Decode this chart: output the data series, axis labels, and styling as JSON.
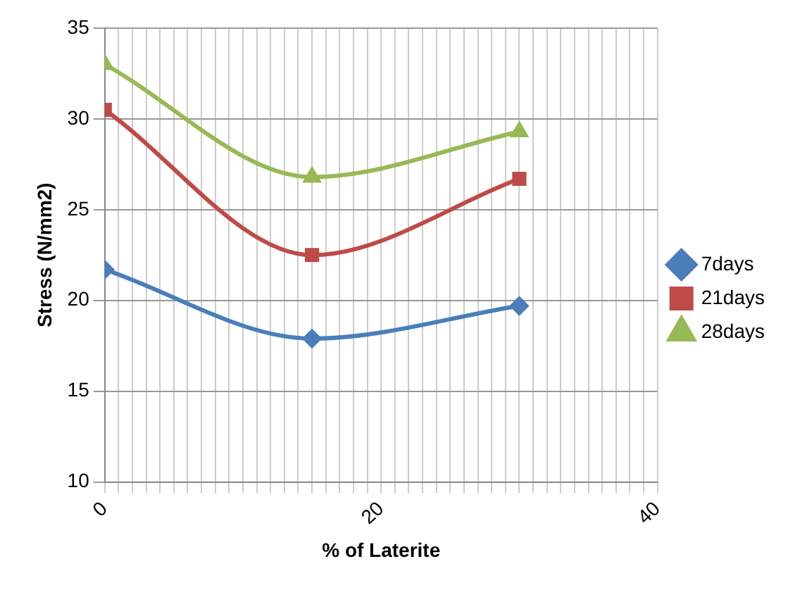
{
  "chart_data": {
    "type": "line",
    "xlabel": "% of Laterite",
    "ylabel": "Stress (N/mm2)",
    "x": [
      0,
      15,
      30
    ],
    "series": [
      {
        "name": "7days",
        "color": "#4a7ebb",
        "values": [
          21.7,
          17.9,
          19.7
        ],
        "marker": "diamond"
      },
      {
        "name": "21days",
        "color": "#be4b48",
        "values": [
          30.5,
          22.5,
          26.7
        ],
        "marker": "square"
      },
      {
        "name": "28days",
        "color": "#98b954",
        "values": [
          33.0,
          26.8,
          29.3
        ],
        "marker": "triangle"
      }
    ],
    "xlim": [
      0,
      40
    ],
    "xticks": [
      0,
      {
        "value": 1,
        "label": null
      },
      {
        "value": 2,
        "label": null
      },
      {
        "value": 3,
        "label": null
      },
      {
        "value": 4,
        "label": null
      },
      {
        "value": 5,
        "label": null
      },
      {
        "value": 6,
        "label": null
      },
      {
        "value": 7,
        "label": null
      },
      {
        "value": 8,
        "label": null
      },
      {
        "value": 9,
        "label": null
      },
      {
        "value": 10,
        "label": null
      },
      {
        "value": 11,
        "label": null
      },
      {
        "value": 12,
        "label": null
      },
      {
        "value": 13,
        "label": null
      },
      {
        "value": 14,
        "label": null
      },
      {
        "value": 15,
        "label": null
      },
      {
        "value": 16,
        "label": null
      },
      {
        "value": 17,
        "label": null
      },
      {
        "value": 18,
        "label": null
      },
      {
        "value": 19,
        "label": null
      },
      20,
      {
        "value": 21,
        "label": null
      },
      {
        "value": 22,
        "label": null
      },
      {
        "value": 23,
        "label": null
      },
      {
        "value": 24,
        "label": null
      },
      {
        "value": 25,
        "label": null
      },
      {
        "value": 26,
        "label": null
      },
      {
        "value": 27,
        "label": null
      },
      {
        "value": 28,
        "label": null
      },
      {
        "value": 29,
        "label": null
      },
      {
        "value": 30,
        "label": null
      },
      {
        "value": 31,
        "label": null
      },
      {
        "value": 32,
        "label": null
      },
      {
        "value": 33,
        "label": null
      },
      {
        "value": 34,
        "label": null
      },
      {
        "value": 35,
        "label": null
      },
      {
        "value": 36,
        "label": null
      },
      {
        "value": 37,
        "label": null
      },
      {
        "value": 38,
        "label": null
      },
      {
        "value": 39,
        "label": null
      },
      40
    ],
    "ylim": [
      10,
      35
    ],
    "yticks": [
      10,
      15,
      20,
      25,
      30,
      35
    ],
    "grid": true,
    "legend": "right"
  }
}
